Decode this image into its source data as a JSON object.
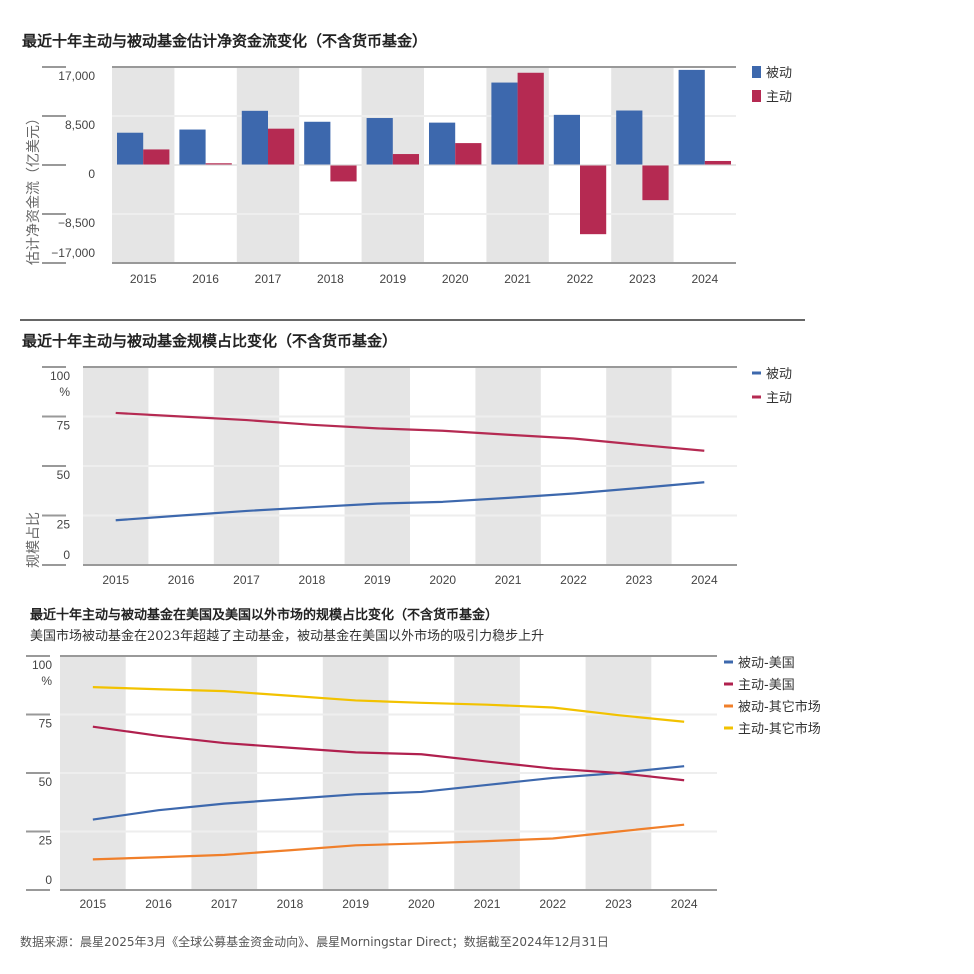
{
  "footer": "数据来源：晨星2025年3月《全球公募基金资金动向》、晨星Morningstar Direct；数据截至2024年12月31日",
  "chart_data": [
    {
      "type": "bar",
      "title": "最近十年主动与被动基金估计净资金流变化（不含货币基金）",
      "ylabel": "估计净资金流（亿美元）",
      "ylim": [
        -17000,
        17000
      ],
      "yticks": [
        "17,000",
        "8,500",
        "0",
        "−8,500",
        "−17,000"
      ],
      "ytick_values": [
        17000,
        8500,
        0,
        -8500,
        -17000
      ],
      "categories": [
        "2015",
        "2016",
        "2017",
        "2018",
        "2019",
        "2020",
        "2021",
        "2022",
        "2023",
        "2024"
      ],
      "legend": "right",
      "grid": true,
      "series": [
        {
          "name": "被动",
          "color": "#3d68ad",
          "values": [
            5600,
            6150,
            9400,
            7500,
            8150,
            7350,
            14300,
            8700,
            9450,
            16500
          ]
        },
        {
          "name": "主动",
          "color": "#b52a52",
          "values": [
            2700,
            300,
            6300,
            -2850,
            1900,
            3800,
            16000,
            -12000,
            -6100,
            700
          ]
        }
      ]
    },
    {
      "type": "line",
      "title": "最近十年主动与被动基金规模占比变化（不含货币基金）",
      "ylabel": "规模占比",
      "yunit": "%",
      "ylim": [
        0,
        100
      ],
      "yticks": [
        "100",
        "75",
        "50",
        "25",
        "0"
      ],
      "ytick_values": [
        100,
        75,
        50,
        25,
        0
      ],
      "categories": [
        "2015",
        "2016",
        "2017",
        "2018",
        "2019",
        "2020",
        "2021",
        "2022",
        "2023",
        "2024"
      ],
      "legend": "right",
      "grid": true,
      "series": [
        {
          "name": "被动",
          "color": "#3d68ad",
          "values": [
            22.6,
            25.0,
            27.3,
            29.2,
            31.0,
            31.9,
            33.9,
            36.1,
            38.9,
            41.8
          ]
        },
        {
          "name": "主动",
          "color": "#b52a52",
          "values": [
            76.8,
            75.0,
            73.2,
            70.8,
            69.0,
            67.8,
            65.8,
            63.9,
            60.7,
            57.7
          ]
        }
      ]
    },
    {
      "type": "line",
      "title": "最近十年主动与被动基金在美国及美国以外市场的规模占比变化（不含货币基金）",
      "subtitle": "美国市场被动基金在2023年超越了主动基金，被动基金在美国以外市场的吸引力稳步上升",
      "yunit": "%",
      "ylim": [
        0,
        100
      ],
      "yticks": [
        "100",
        "75",
        "50",
        "25",
        "0"
      ],
      "ytick_values": [
        100,
        75,
        50,
        25,
        0
      ],
      "categories": [
        "2015",
        "2016",
        "2017",
        "2018",
        "2019",
        "2020",
        "2021",
        "2022",
        "2023",
        "2024"
      ],
      "legend": "right",
      "grid": true,
      "series": [
        {
          "name": "被动-美国",
          "color": "#3d68ad",
          "values": [
            30.1,
            34.1,
            36.9,
            38.9,
            40.9,
            41.9,
            44.9,
            47.9,
            50.0,
            52.9
          ]
        },
        {
          "name": "主动-美国",
          "color": "#b0204e",
          "values": [
            69.8,
            65.9,
            62.8,
            60.8,
            58.8,
            58.0,
            54.9,
            51.9,
            50.0,
            46.9
          ]
        },
        {
          "name": "被动-其它市场",
          "color": "#f07f2a",
          "values": [
            13.1,
            14.0,
            15.0,
            17.0,
            19.1,
            19.9,
            20.9,
            22.0,
            25.0,
            27.9
          ]
        },
        {
          "name": "主动-其它市场",
          "color": "#f2c200",
          "values": [
            86.7,
            85.8,
            85.0,
            83.0,
            81.0,
            80.0,
            79.2,
            78.0,
            74.7,
            71.9
          ]
        }
      ]
    }
  ]
}
